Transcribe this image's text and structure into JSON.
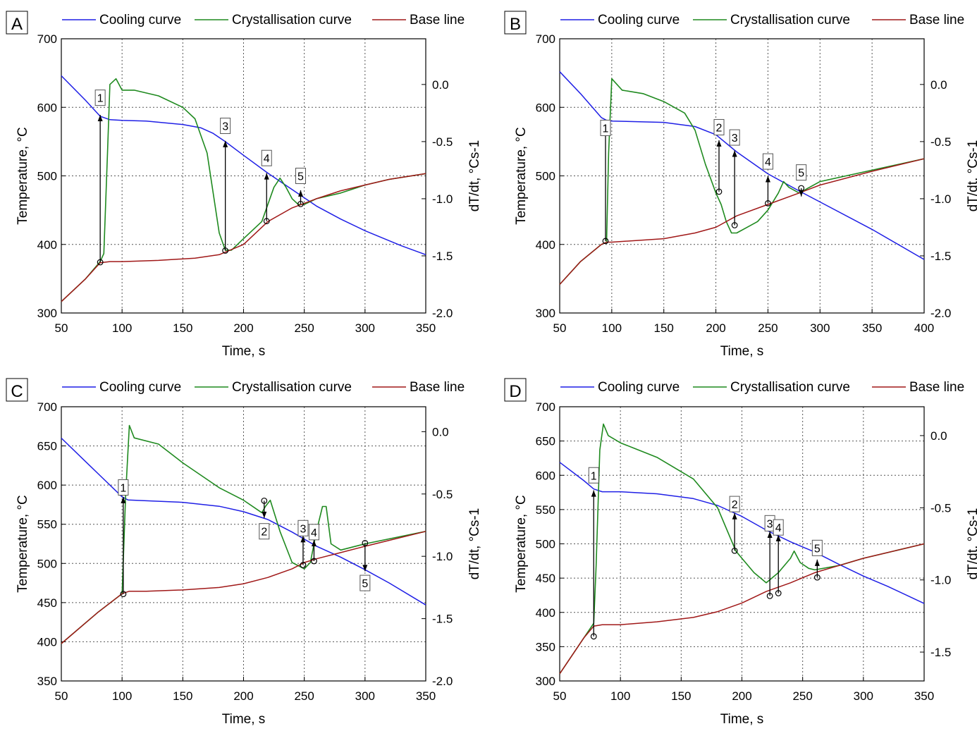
{
  "legend": {
    "cooling": "Cooling curve",
    "cryst": "Crystallisation curve",
    "base": "Base line"
  },
  "colors": {
    "cooling": "#1f1fe6",
    "cryst": "#1f8a1f",
    "base": "#a01818"
  },
  "chart_data": [
    {
      "type": "line",
      "panel_label": "A",
      "xlabel": "Time, s",
      "ylabel": "Temperature, °C",
      "y2label": "dT/dt, °Cs-1",
      "xlim": [
        50,
        350
      ],
      "ylim": [
        300,
        700
      ],
      "y2lim": [
        -2.0,
        0.4
      ],
      "xticks": [
        "50",
        "100",
        "150",
        "200",
        "250",
        "300",
        "350"
      ],
      "yticks": [
        "300",
        "400",
        "500",
        "600",
        "700"
      ],
      "y2ticks": [
        "-2.0",
        "-1.5",
        "-1.0",
        "-0.5",
        "0.0"
      ],
      "grid": true,
      "legend_position": "top",
      "series": [
        {
          "name": "Cooling curve",
          "x": [
            50,
            70,
            82,
            90,
            100,
            120,
            150,
            165,
            175,
            185,
            200,
            220,
            240,
            260,
            280,
            300,
            330,
            350
          ],
          "y": [
            646,
            610,
            587,
            582,
            581,
            580,
            575,
            570,
            562,
            550,
            530,
            504,
            480,
            456,
            437,
            420,
            398,
            385
          ]
        },
        {
          "name": "Crystallisation curve",
          "x": [
            50,
            70,
            82,
            85,
            88,
            90,
            95,
            100,
            110,
            130,
            150,
            160,
            170,
            175,
            180,
            185,
            190,
            200,
            215,
            220,
            225,
            230,
            235,
            240,
            245,
            250,
            260,
            280,
            300,
            320,
            350
          ],
          "y": [
            -1.9,
            -1.7,
            -1.55,
            -1.48,
            -0.6,
            0.0,
            0.05,
            -0.05,
            -0.05,
            -0.1,
            -0.2,
            -0.3,
            -0.6,
            -0.95,
            -1.3,
            -1.45,
            -1.45,
            -1.35,
            -1.2,
            -1.05,
            -0.9,
            -0.82,
            -0.9,
            -1.0,
            -1.05,
            -1.05,
            -1.0,
            -0.95,
            -0.88,
            -0.83,
            -0.78
          ]
        },
        {
          "name": "Base line",
          "x": [
            50,
            70,
            82,
            90,
            100,
            130,
            160,
            180,
            200,
            220,
            240,
            250,
            260,
            280,
            300,
            320,
            350
          ],
          "y": [
            -1.9,
            -1.7,
            -1.56,
            -1.55,
            -1.55,
            -1.54,
            -1.52,
            -1.49,
            -1.4,
            -1.2,
            -1.08,
            -1.04,
            -1.0,
            -0.93,
            -0.88,
            -0.83,
            -0.78
          ]
        }
      ],
      "markers": [
        {
          "label": "1",
          "x": 82,
          "y_from": 374,
          "y_to": 589,
          "dir": "up",
          "label_temp": 614
        },
        {
          "label": "3",
          "x": 185,
          "y_from": 391,
          "y_to": 551,
          "dir": "up",
          "label_temp": 573
        },
        {
          "label": "4",
          "x": 219,
          "y_from": 434,
          "y_to": 504,
          "dir": "up",
          "label_temp": 526
        },
        {
          "label": "5",
          "x": 247,
          "y_from": 459,
          "y_to": 479,
          "dir": "up",
          "label_temp": 500
        }
      ]
    },
    {
      "type": "line",
      "panel_label": "B",
      "xlabel": "Time, s",
      "ylabel": "Temperature, °C",
      "y2label": "dT/dt, °Cs-1",
      "xlim": [
        50,
        400
      ],
      "ylim": [
        300,
        700
      ],
      "y2lim": [
        -2.0,
        0.4
      ],
      "xticks": [
        "50",
        "100",
        "150",
        "200",
        "250",
        "300",
        "350",
        "400"
      ],
      "yticks": [
        "300",
        "400",
        "500",
        "600",
        "700"
      ],
      "y2ticks": [
        "-2.0",
        "-1.5",
        "-1.0",
        "-0.5",
        "0.0"
      ],
      "grid": true,
      "legend_position": "top",
      "series": [
        {
          "name": "Cooling curve",
          "x": [
            50,
            70,
            90,
            95,
            100,
            150,
            180,
            200,
            220,
            250,
            280,
            300,
            350,
            400
          ],
          "y": [
            652,
            620,
            585,
            581,
            580,
            578,
            572,
            560,
            535,
            503,
            478,
            462,
            422,
            378
          ]
        },
        {
          "name": "Crystallisation curve",
          "x": [
            50,
            70,
            90,
            95,
            97,
            100,
            110,
            130,
            150,
            170,
            180,
            190,
            200,
            205,
            210,
            215,
            220,
            230,
            240,
            250,
            260,
            265,
            270,
            280,
            300,
            350,
            400
          ],
          "y": [
            -1.75,
            -1.55,
            -1.4,
            -1.38,
            -0.6,
            0.05,
            -0.05,
            -0.08,
            -0.15,
            -0.25,
            -0.4,
            -0.7,
            -0.95,
            -1.05,
            -1.2,
            -1.3,
            -1.3,
            -1.25,
            -1.2,
            -1.1,
            -0.95,
            -0.85,
            -0.9,
            -0.95,
            -0.85,
            -0.75,
            -0.65
          ]
        },
        {
          "name": "Base line",
          "x": [
            50,
            70,
            90,
            95,
            100,
            150,
            180,
            200,
            220,
            250,
            280,
            300,
            350,
            400
          ],
          "y": [
            -1.75,
            -1.55,
            -1.4,
            -1.38,
            -1.38,
            -1.35,
            -1.3,
            -1.25,
            -1.15,
            -1.05,
            -0.95,
            -0.88,
            -0.76,
            -0.65
          ]
        }
      ],
      "markers": [
        {
          "label": "1",
          "x": 94,
          "y_from": 405,
          "y_to": 581,
          "dir": "up",
          "label_temp": 570
        },
        {
          "label": "2",
          "x": 203,
          "y_from": 477,
          "y_to": 552,
          "dir": "up",
          "label_temp": 571
        },
        {
          "label": "3",
          "x": 218,
          "y_from": 428,
          "y_to": 537,
          "dir": "up",
          "label_temp": 556
        },
        {
          "label": "4",
          "x": 250,
          "y_from": 460,
          "y_to": 500,
          "dir": "up",
          "label_temp": 521
        },
        {
          "label": "5",
          "x": 282,
          "y_from": 482,
          "y_to": 470,
          "dir": "down",
          "label_temp": 505
        }
      ]
    },
    {
      "type": "line",
      "panel_label": "C",
      "xlabel": "Time, s",
      "ylabel": "Temperature, °C",
      "y2label": "dT/dt, °Cs-1",
      "xlim": [
        50,
        350
      ],
      "ylim": [
        350,
        700
      ],
      "y2lim": [
        -2.0,
        0.2
      ],
      "xticks": [
        "50",
        "100",
        "150",
        "200",
        "250",
        "300",
        "350"
      ],
      "yticks": [
        "350",
        "400",
        "450",
        "500",
        "550",
        "600",
        "650",
        "700"
      ],
      "y2ticks": [
        "-2.0",
        "-1.5",
        "-1.0",
        "-0.5",
        "0.0"
      ],
      "grid": true,
      "legend_position": "top",
      "series": [
        {
          "name": "Cooling curve",
          "x": [
            50,
            80,
            100,
            105,
            120,
            150,
            180,
            200,
            220,
            240,
            260,
            280,
            300,
            320,
            350
          ],
          "y": [
            660,
            615,
            585,
            581,
            580,
            578,
            573,
            566,
            556,
            540,
            522,
            508,
            492,
            475,
            447
          ]
        },
        {
          "name": "Crystallisation curve",
          "x": [
            50,
            80,
            100,
            103,
            106,
            110,
            130,
            150,
            180,
            200,
            215,
            218,
            222,
            230,
            240,
            250,
            255,
            260,
            265,
            268,
            272,
            280,
            300,
            350
          ],
          "y": [
            -1.7,
            -1.45,
            -1.3,
            -0.5,
            0.05,
            -0.05,
            -0.1,
            -0.25,
            -0.45,
            -0.55,
            -0.65,
            -0.6,
            -0.55,
            -0.8,
            -1.05,
            -1.1,
            -1.05,
            -0.8,
            -0.6,
            -0.6,
            -0.9,
            -0.95,
            -0.9,
            -0.8
          ]
        },
        {
          "name": "Base line",
          "x": [
            50,
            80,
            100,
            106,
            120,
            150,
            180,
            200,
            220,
            240,
            250,
            260,
            280,
            300,
            350
          ],
          "y": [
            -1.7,
            -1.45,
            -1.3,
            -1.28,
            -1.28,
            -1.27,
            -1.25,
            -1.22,
            -1.17,
            -1.1,
            -1.05,
            -1.02,
            -0.97,
            -0.92,
            -0.8
          ]
        }
      ],
      "markers": [
        {
          "label": "1",
          "x": 101,
          "y_from": 461,
          "y_to": 585,
          "dir": "up",
          "label_temp": 597
        },
        {
          "label": "2",
          "x": 217,
          "y_from": 580,
          "y_to": 558,
          "dir": "down",
          "label_temp": 541
        },
        {
          "label": "3",
          "x": 249,
          "y_from": 498,
          "y_to": 535,
          "dir": "up",
          "label_temp": 545
        },
        {
          "label": "4",
          "x": 258,
          "y_from": 503,
          "y_to": 530,
          "dir": "up",
          "label_temp": 540
        },
        {
          "label": "5",
          "x": 300,
          "y_from": 526,
          "y_to": 490,
          "dir": "down",
          "label_temp": 475
        }
      ]
    },
    {
      "type": "line",
      "panel_label": "D",
      "xlabel": "Time, s",
      "ylabel": "Temperature, °C",
      "y2label": "dT/dt, °Cs-1",
      "xlim": [
        50,
        350
      ],
      "ylim": [
        300,
        700
      ],
      "y2lim": [
        -1.7,
        0.2
      ],
      "xticks": [
        "50",
        "100",
        "150",
        "200",
        "250",
        "300",
        "350"
      ],
      "yticks": [
        "300",
        "350",
        "400",
        "450",
        "500",
        "550",
        "600",
        "650",
        "700"
      ],
      "y2ticks": [
        "-1.5",
        "-1.0",
        "-0.5",
        "0.0"
      ],
      "grid": true,
      "legend_position": "top",
      "series": [
        {
          "name": "Cooling curve",
          "x": [
            50,
            70,
            78,
            85,
            100,
            130,
            160,
            180,
            200,
            220,
            240,
            260,
            280,
            300,
            320,
            350
          ],
          "y": [
            619,
            592,
            580,
            576,
            576,
            573,
            566,
            556,
            540,
            520,
            503,
            488,
            470,
            453,
            438,
            413
          ]
        },
        {
          "name": "Crystallisation curve",
          "x": [
            50,
            70,
            78,
            80,
            83,
            86,
            90,
            100,
            130,
            160,
            180,
            190,
            195,
            200,
            210,
            220,
            230,
            240,
            243,
            248,
            255,
            260,
            280,
            300,
            350
          ],
          "y": [
            -1.65,
            -1.4,
            -1.3,
            -0.9,
            -0.1,
            0.08,
            0.0,
            -0.05,
            -0.15,
            -0.3,
            -0.5,
            -0.7,
            -0.8,
            -0.85,
            -0.95,
            -1.02,
            -0.95,
            -0.85,
            -0.8,
            -0.88,
            -0.92,
            -0.93,
            -0.9,
            -0.85,
            -0.75
          ]
        },
        {
          "name": "Base line",
          "x": [
            50,
            70,
            78,
            85,
            100,
            130,
            160,
            180,
            200,
            220,
            240,
            260,
            280,
            300,
            350
          ],
          "y": [
            -1.65,
            -1.4,
            -1.32,
            -1.31,
            -1.31,
            -1.29,
            -1.26,
            -1.22,
            -1.16,
            -1.08,
            -1.02,
            -0.95,
            -0.9,
            -0.85,
            -0.75
          ]
        }
      ],
      "markers": [
        {
          "label": "1",
          "x": 78,
          "y_from": 365,
          "y_to": 578,
          "dir": "up",
          "label_temp": 600
        },
        {
          "label": "2",
          "x": 194,
          "y_from": 490,
          "y_to": 545,
          "dir": "up",
          "label_temp": 558
        },
        {
          "label": "3",
          "x": 223,
          "y_from": 424,
          "y_to": 518,
          "dir": "up",
          "label_temp": 530
        },
        {
          "label": "4",
          "x": 230,
          "y_from": 428,
          "y_to": 513,
          "dir": "up",
          "label_temp": 524
        },
        {
          "label": "5",
          "x": 262,
          "y_from": 451,
          "y_to": 477,
          "dir": "up",
          "label_temp": 494
        }
      ]
    }
  ]
}
